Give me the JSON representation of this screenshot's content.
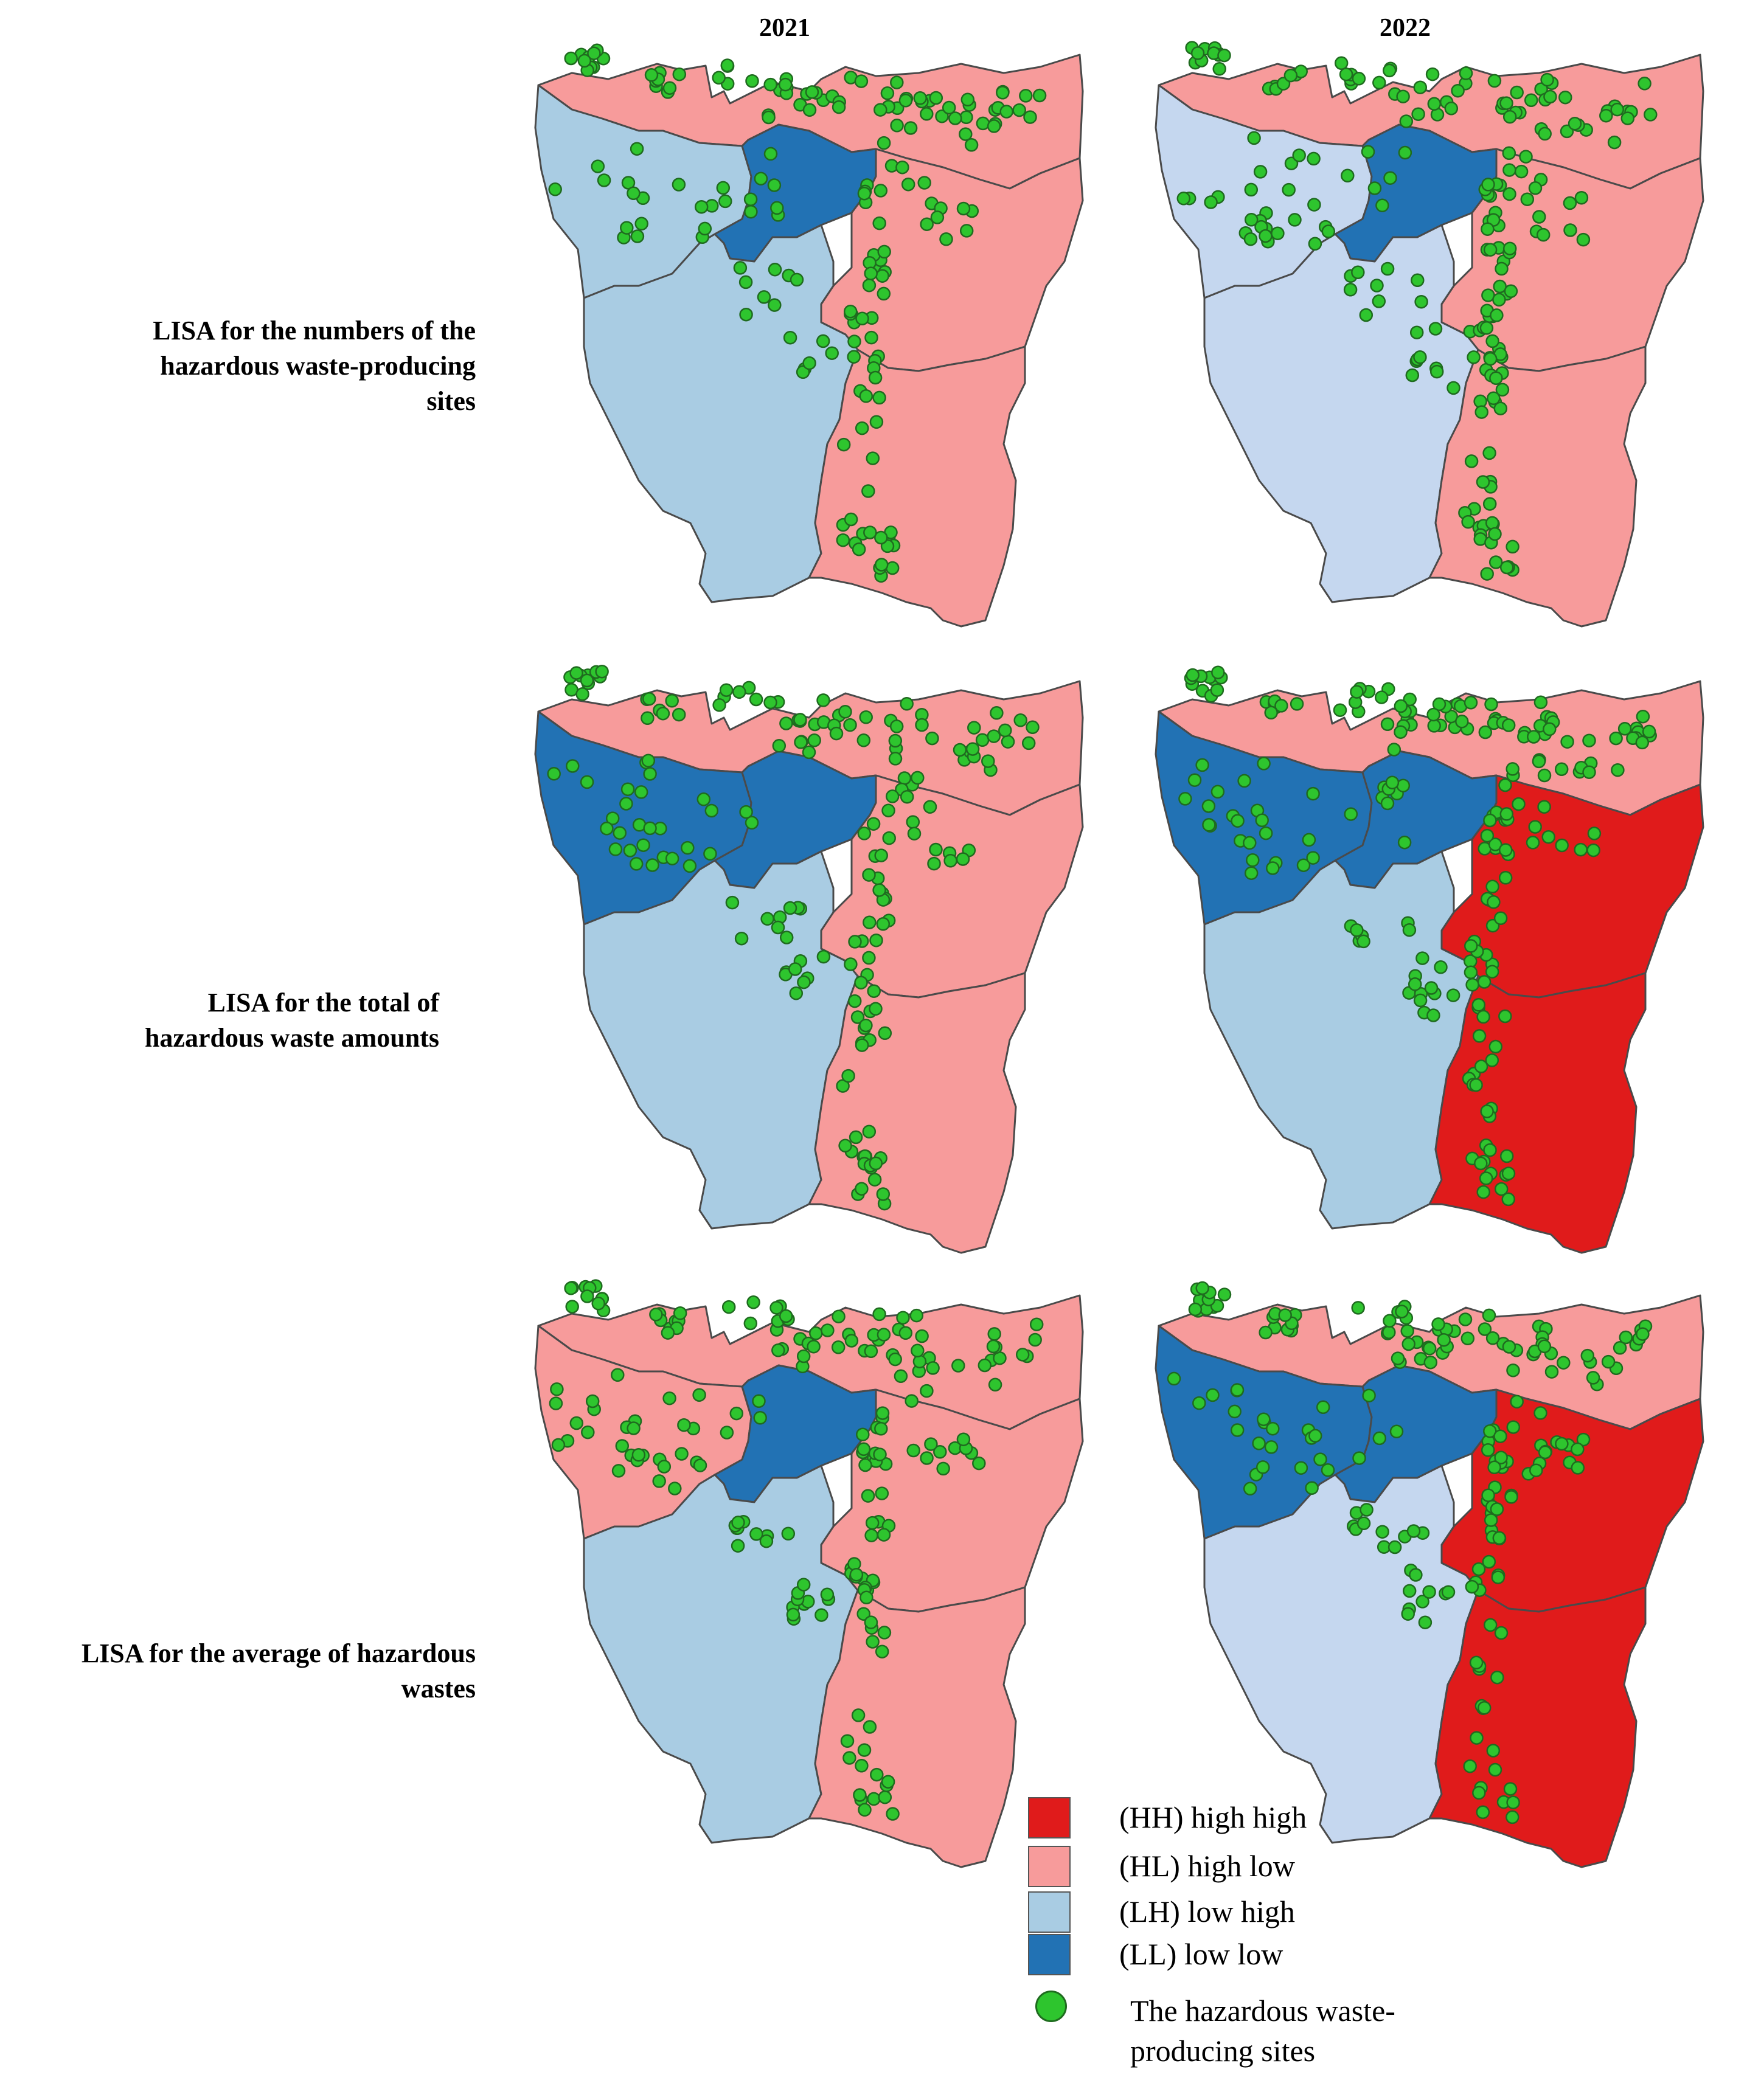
{
  "columns": [
    "2021",
    "2022"
  ],
  "rows": [
    {
      "label_lines": [
        "LISA for the numbers of the",
        "hazardous waste-producing",
        "sites"
      ],
      "maps": [
        {
          "year": "2021",
          "regions": {
            "north": "HL",
            "west": "LH",
            "center": "LL",
            "east": "HL",
            "south_west": "LH",
            "south_east": "HL"
          }
        },
        {
          "year": "2022",
          "regions": {
            "north": "HL",
            "west": "LH",
            "center": "LL",
            "east": "HL",
            "south_west": "LH",
            "south_east": "HL"
          }
        }
      ]
    },
    {
      "label_lines": [
        "LISA for the total of",
        "hazardous waste amounts"
      ],
      "maps": [
        {
          "year": "2021",
          "regions": {
            "north": "HL",
            "west": "LL",
            "center": "LL",
            "east": "HL",
            "south_west": "LH",
            "south_east": "HL"
          }
        },
        {
          "year": "2022",
          "regions": {
            "north": "HL",
            "west": "LL",
            "center": "LL",
            "east": "HH",
            "south_west": "LH",
            "south_east": "HH"
          }
        }
      ]
    },
    {
      "label_lines": [
        "LISA for the average of hazardous",
        "wastes"
      ],
      "maps": [
        {
          "year": "2021",
          "regions": {
            "north": "HL",
            "west": "HL",
            "center": "LL",
            "east": "HL",
            "south_west": "LH",
            "south_east": "HL"
          }
        },
        {
          "year": "2022",
          "regions": {
            "north": "HL",
            "west": "LL",
            "center": "LL",
            "east": "HH",
            "south_west": "LH",
            "south_east": "HH"
          }
        }
      ]
    }
  ],
  "legend": [
    {
      "code": "HH",
      "label": "(HH) high high",
      "color": "#e01b1b"
    },
    {
      "code": "HL",
      "label": "(HL) high low",
      "color": "#f79b9b"
    },
    {
      "code": "LH",
      "label": "(LH) low high",
      "color": "#a9cce3"
    },
    {
      "code": "LL",
      "label": "(LL) low low",
      "color": "#2272b4"
    }
  ],
  "sites_legend": {
    "label_lines": [
      "The hazardous waste-",
      "producing sites"
    ],
    "color": "#2ec52e",
    "stroke": "#1f6b1f"
  },
  "lh_light_color": "#c5d7ef"
}
